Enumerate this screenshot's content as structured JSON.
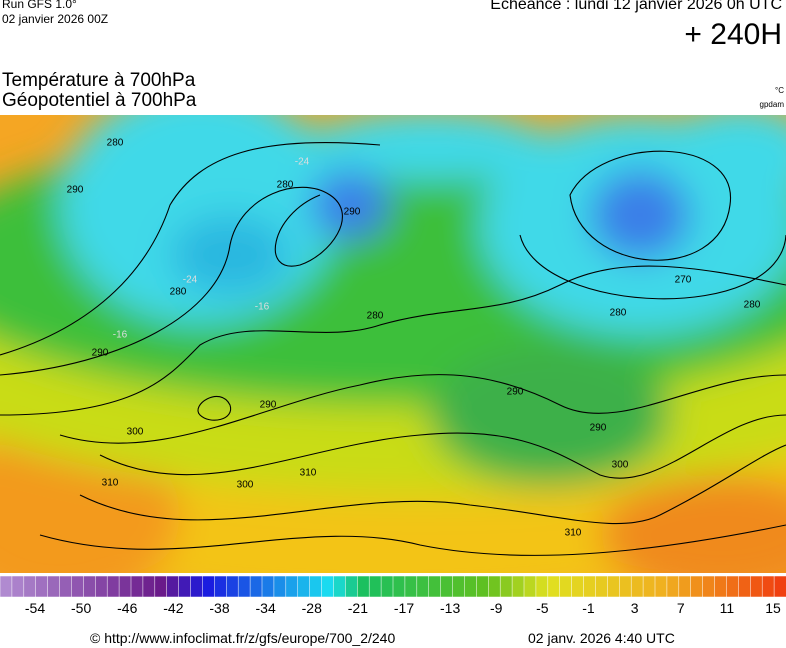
{
  "header": {
    "run": "Run GFS 1.0°",
    "run_date": "02 janvier 2026 00Z",
    "echeance": "Echéance : lundi 12 janvier 2026 0h UTC",
    "lead": "+ 240H",
    "title_1": "Température à 700hPa",
    "title_2": "Géopotentiel à 700hPa",
    "unit_temp": "°C",
    "unit_geo": "gpdam"
  },
  "map": {
    "contour_labels": [
      "280",
      "290",
      "280",
      "290",
      "300",
      "310",
      "290",
      "300",
      "310",
      "280",
      "290",
      "280",
      "290",
      "270",
      "280",
      "280",
      "290",
      "300",
      "310",
      "-16",
      "-24",
      "-16",
      "-24"
    ]
  },
  "colorbar": {
    "ticks": [
      -54,
      -50,
      -46,
      -42,
      -38,
      -34,
      -28,
      -21,
      -17,
      -13,
      -9,
      -5,
      -1,
      3,
      7,
      11,
      15
    ]
  },
  "footer": {
    "source": "© http://www.infoclimat.fr/z/gfs/europe/700_2/240",
    "generated": "02 janv. 2026  4:40 UTC"
  }
}
